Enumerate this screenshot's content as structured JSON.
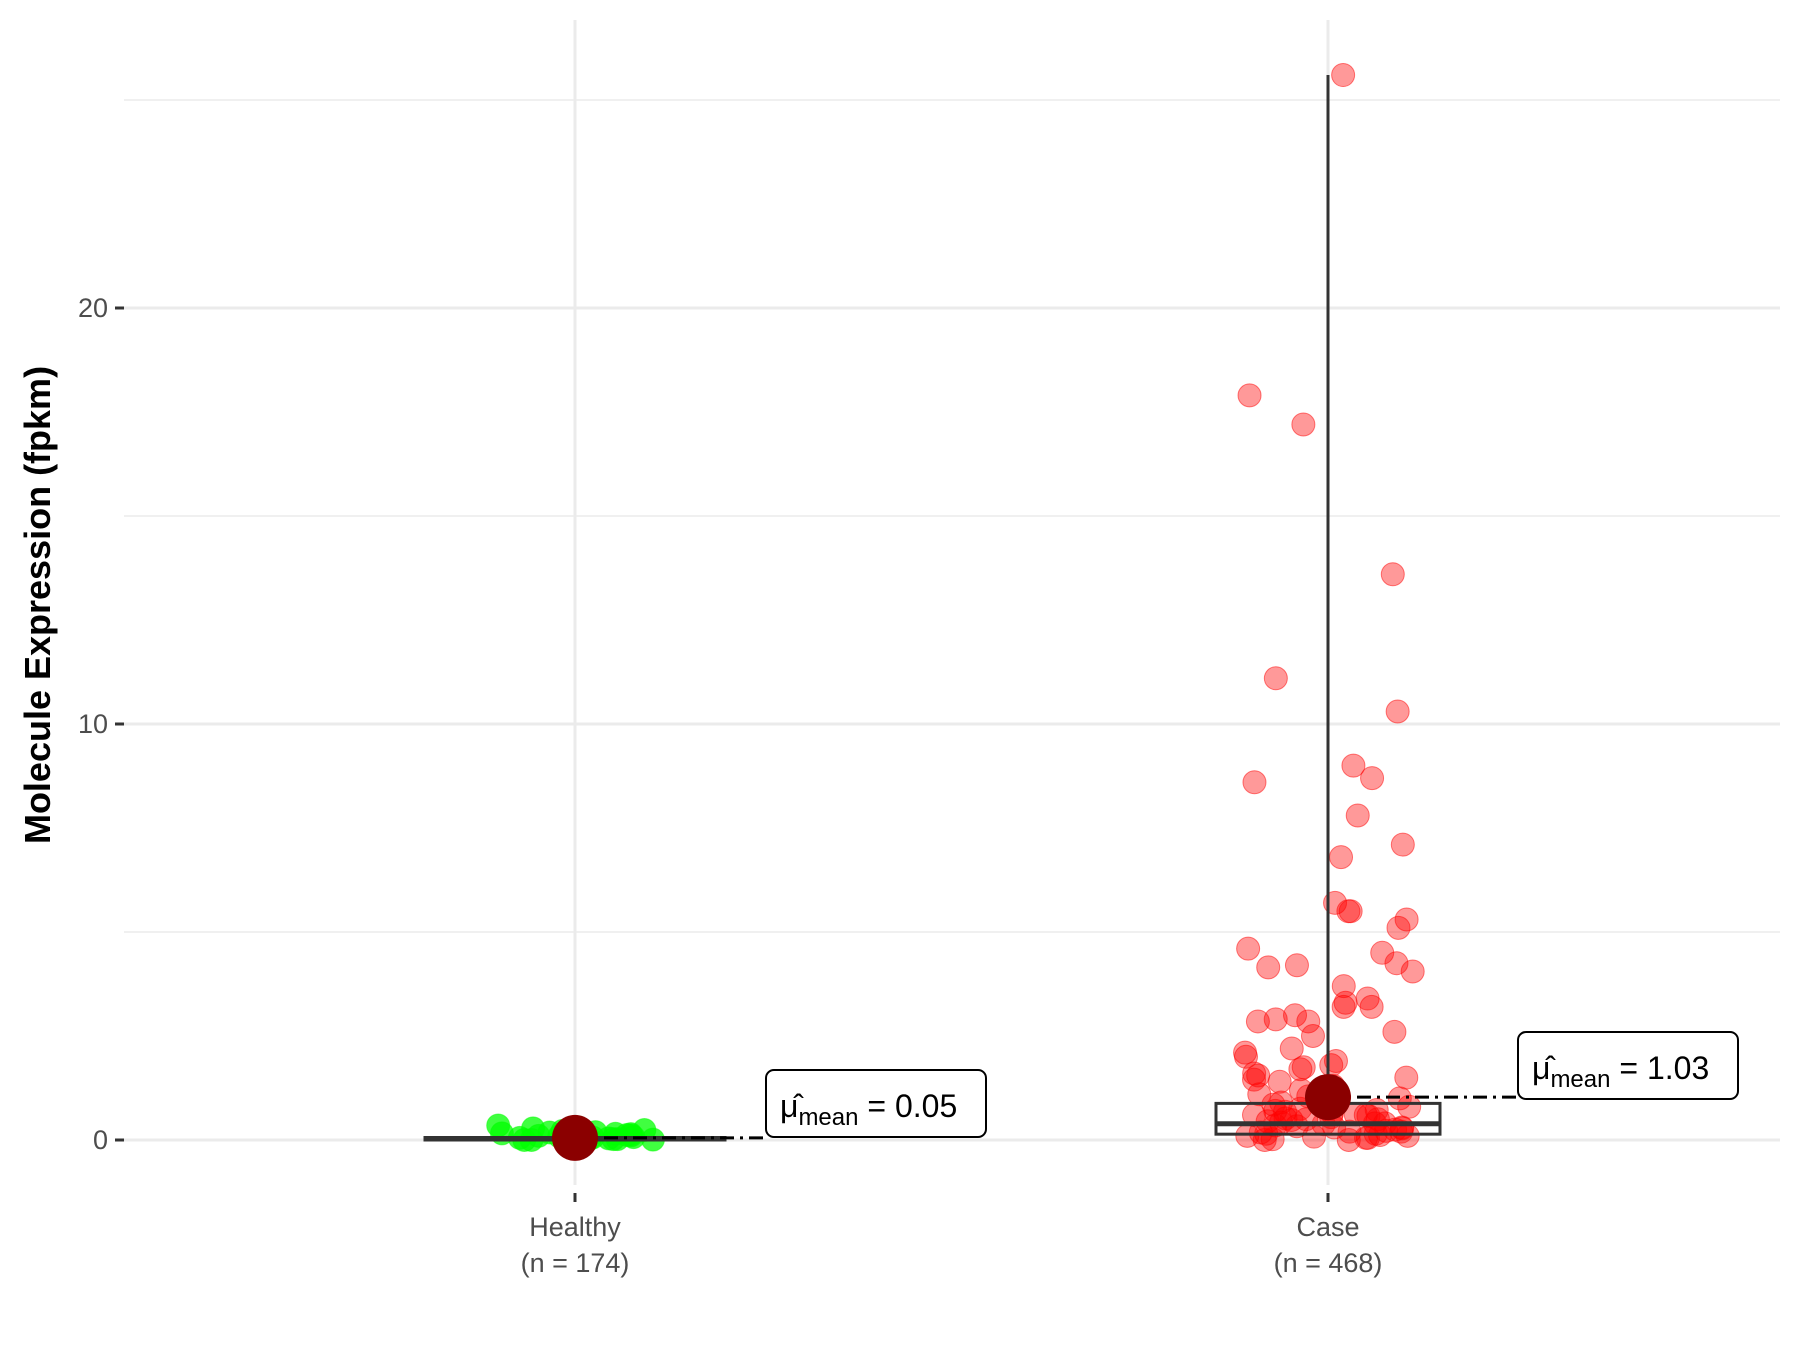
{
  "chart_data": {
    "type": "box-jitter",
    "title": "",
    "xlabel": "",
    "ylabel": "Molecule Expression (fpkm)",
    "ylim": [
      -2.2,
      27
    ],
    "yticks": [
      0,
      10,
      20
    ],
    "grid": true,
    "categories": [
      {
        "label": "Healthy",
        "n_label": "(n = 174)",
        "color": "#00FF00",
        "mean": 0.05,
        "mean_label": "0.05",
        "box": {
          "q1": 0.0,
          "median": 0.03,
          "q3": 0.06,
          "whisker_low": 0.0,
          "whisker_high": 0.15
        },
        "points": [
          0.0,
          0.02,
          0.05,
          0.08,
          0.1,
          0.12,
          0.15,
          0.2,
          0.25,
          0.3,
          0.35,
          0.03,
          0.06,
          0.09,
          0.14,
          0.18,
          0.22,
          0.28,
          0.01,
          0.04,
          0.07,
          0.11,
          0.16,
          0.19,
          0.24,
          0.0,
          0.02,
          0.05
        ]
      },
      {
        "label": "Case",
        "n_label": "(n = 468)",
        "color": "#FF0000",
        "mean": 1.03,
        "mean_label": "1.03",
        "box": {
          "q1": 0.14,
          "median": 0.39,
          "q3": 0.88,
          "whisker_low": 0.0,
          "whisker_high": 25.6
        },
        "points": [
          25.6,
          17.9,
          17.2,
          13.6,
          11.1,
          10.3,
          9.0,
          8.7,
          8.6,
          7.8,
          7.1,
          6.8,
          5.7,
          5.5,
          5.5,
          5.3,
          5.1,
          4.6,
          4.5,
          4.25,
          4.2,
          4.15,
          4.05,
          3.7,
          3.4,
          3.3,
          3.2,
          3.2,
          3.0,
          2.9,
          2.85,
          2.85,
          2.6,
          2.5,
          2.2,
          2.1,
          2.0,
          1.9,
          1.8,
          1.75,
          1.7,
          1.6,
          1.55,
          1.5,
          1.45,
          1.4,
          1.3,
          1.25,
          1.2,
          1.1,
          1.05,
          1.0,
          0.95,
          0.9,
          0.85,
          0.8,
          0.75,
          0.7,
          0.65,
          0.6,
          0.55,
          0.5,
          0.45,
          0.4,
          0.35,
          0.3,
          0.25,
          0.2,
          0.15,
          0.1,
          0.05,
          0.0,
          0.02,
          0.08,
          0.12,
          0.18,
          0.22,
          0.28,
          0.33,
          0.38,
          0.42,
          0.48,
          0.52,
          0.58,
          0.62,
          0.68,
          0.72,
          0.78,
          0.0,
          0.05,
          0.1,
          0.15,
          0.2,
          0.3,
          0.4,
          0.5,
          0.6
        ]
      }
    ],
    "mean_symbol": "μ̂",
    "mean_subscript": "mean",
    "mean_point_color": "#8B0000"
  }
}
